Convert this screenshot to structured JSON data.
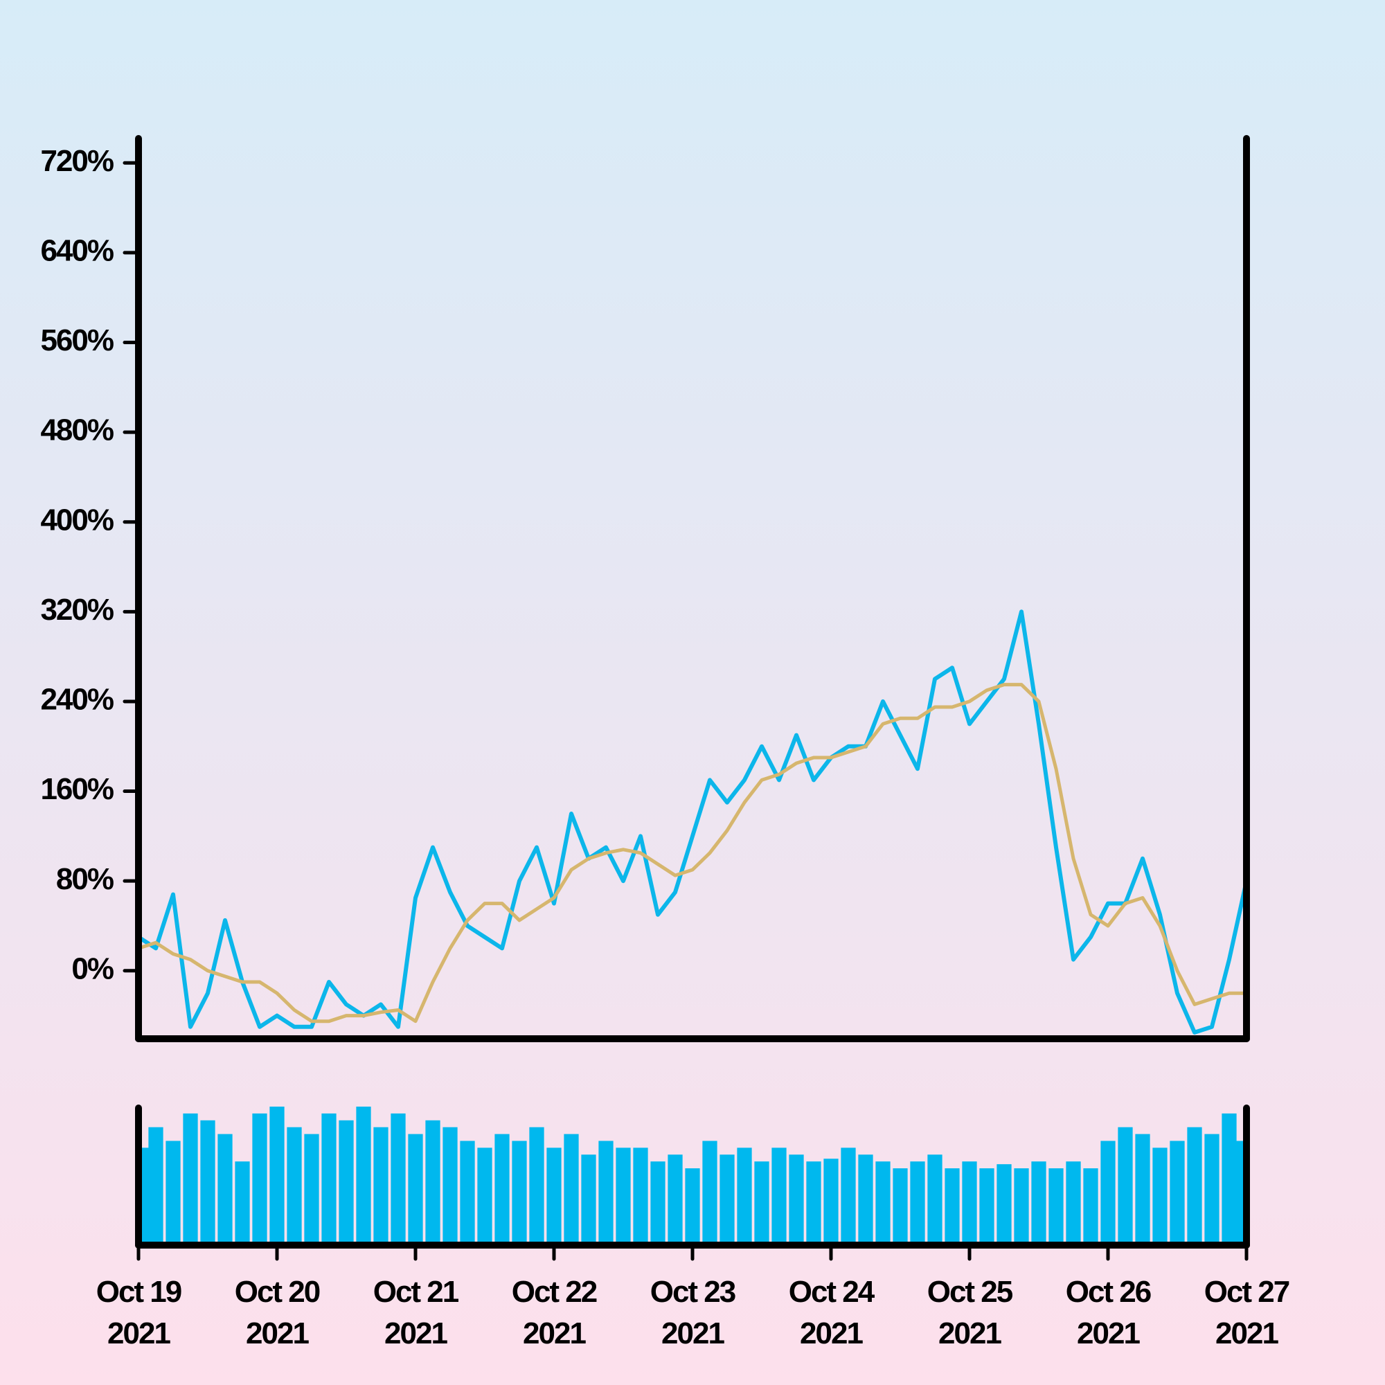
{
  "chart_data": {
    "type": "line",
    "x": [
      0,
      0.125,
      0.25,
      0.375,
      0.5,
      0.625,
      0.75,
      0.875,
      1,
      1.125,
      1.25,
      1.375,
      1.5,
      1.625,
      1.75,
      1.875,
      2,
      2.125,
      2.25,
      2.375,
      2.5,
      2.625,
      2.75,
      2.875,
      3,
      3.125,
      3.25,
      3.375,
      3.5,
      3.625,
      3.75,
      3.875,
      4,
      4.125,
      4.25,
      4.375,
      4.5,
      4.625,
      4.75,
      4.875,
      5,
      5.125,
      5.25,
      5.375,
      5.5,
      5.625,
      5.75,
      5.875,
      6,
      6.125,
      6.25,
      6.375,
      6.5,
      6.625,
      6.75,
      6.875,
      7,
      7.125,
      7.25,
      7.375,
      7.5,
      7.625,
      7.75,
      7.875,
      8
    ],
    "series": [
      {
        "color": "#0cb6ea",
        "values": [
          30,
          20,
          68,
          -50,
          -20,
          45,
          -10,
          -50,
          -40,
          -50,
          -50,
          -10,
          -30,
          -40,
          -30,
          -50,
          65,
          110,
          70,
          40,
          30,
          20,
          80,
          110,
          60,
          140,
          100,
          110,
          80,
          120,
          50,
          70,
          120,
          170,
          150,
          170,
          200,
          170,
          210,
          170,
          190,
          200,
          200,
          240,
          210,
          180,
          260,
          270,
          220,
          240,
          260,
          320,
          220,
          110,
          10,
          30,
          60,
          60,
          100,
          50,
          -20,
          -55,
          -50,
          10,
          80
        ]
      },
      {
        "color": "#d6b66e",
        "values": [
          20,
          25,
          15,
          10,
          0,
          -5,
          -10,
          -10,
          -20,
          -35,
          -45,
          -45,
          -40,
          -40,
          -37,
          -35,
          -45,
          -10,
          20,
          45,
          60,
          60,
          45,
          55,
          65,
          90,
          100,
          105,
          108,
          105,
          95,
          85,
          90,
          105,
          125,
          150,
          170,
          175,
          185,
          190,
          190,
          195,
          200,
          220,
          225,
          225,
          235,
          235,
          240,
          250,
          255,
          255,
          240,
          180,
          100,
          50,
          40,
          60,
          65,
          40,
          0,
          -30,
          -25,
          -20,
          -20
        ]
      }
    ],
    "volume": {
      "color": "#00b8ee",
      "ylim": [
        0,
        100
      ],
      "values": [
        70,
        85,
        75,
        95,
        90,
        80,
        60,
        95,
        100,
        85,
        80,
        95,
        90,
        100,
        85,
        95,
        80,
        90,
        85,
        75,
        70,
        80,
        75,
        85,
        70,
        80,
        65,
        75,
        70,
        70,
        60,
        65,
        55,
        75,
        65,
        70,
        60,
        70,
        65,
        60,
        62,
        70,
        65,
        60,
        55,
        60,
        65,
        55,
        60,
        55,
        58,
        55,
        60,
        55,
        60,
        55,
        75,
        85,
        80,
        70,
        75,
        85,
        80,
        95,
        75
      ]
    },
    "xlim": [
      0,
      8
    ],
    "xticks": [
      {
        "value": 0,
        "label": "Oct 19\n2021"
      },
      {
        "value": 1,
        "label": "Oct 20\n2021"
      },
      {
        "value": 2,
        "label": "Oct 21\n2021"
      },
      {
        "value": 3,
        "label": "Oct 22\n2021"
      },
      {
        "value": 4,
        "label": "Oct 23\n2021"
      },
      {
        "value": 5,
        "label": "Oct 24\n2021"
      },
      {
        "value": 6,
        "label": "Oct 25\n2021"
      },
      {
        "value": 7,
        "label": "Oct 26\n2021"
      },
      {
        "value": 8,
        "label": "Oct 27\n2021"
      }
    ],
    "ylim": [
      -60,
      743
    ],
    "yticks": [
      {
        "value": 0,
        "label": "0%"
      },
      {
        "value": 80,
        "label": "80%"
      },
      {
        "value": 160,
        "label": "160%"
      },
      {
        "value": 240,
        "label": "240%"
      },
      {
        "value": 320,
        "label": "320%"
      },
      {
        "value": 400,
        "label": "400%"
      },
      {
        "value": 480,
        "label": "480%"
      },
      {
        "value": 560,
        "label": "560%"
      },
      {
        "value": 640,
        "label": "640%"
      },
      {
        "value": 720,
        "label": "720%"
      }
    ]
  }
}
